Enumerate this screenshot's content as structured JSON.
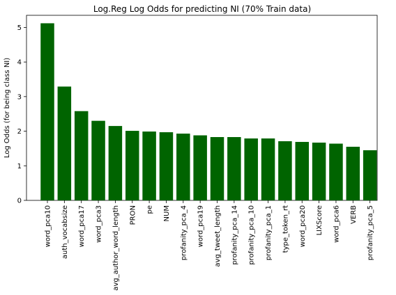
{
  "chart_data": {
    "type": "bar",
    "title": "Log.Reg Log Odds for predicting NI (70% Train data)",
    "xlabel": "",
    "ylabel": "Log Odds (for being class NI)",
    "ylim": [
      0,
      5.35
    ],
    "yticks": [
      0,
      1,
      2,
      3,
      4,
      5
    ],
    "grid": false,
    "bar_color": "#006400",
    "categories": [
      "word_pca10",
      "auth_vocabsize",
      "word_pca17",
      "word_pca3",
      "avg_author_word_length",
      "PRON",
      "pe",
      "NUM",
      "profanity_pca_4",
      "word_pca19",
      "avg_tweet_length",
      "profanity_pca_14",
      "profanity_pca_10",
      "profanity_pca_1",
      "type_token_rt",
      "word_pca20",
      "LIXScore",
      "word_pca6",
      "VERB",
      "profanity_pca_5"
    ],
    "values": [
      5.12,
      3.29,
      2.58,
      2.3,
      2.15,
      2.01,
      1.99,
      1.97,
      1.93,
      1.88,
      1.83,
      1.83,
      1.79,
      1.79,
      1.71,
      1.69,
      1.67,
      1.64,
      1.55,
      1.45
    ]
  }
}
